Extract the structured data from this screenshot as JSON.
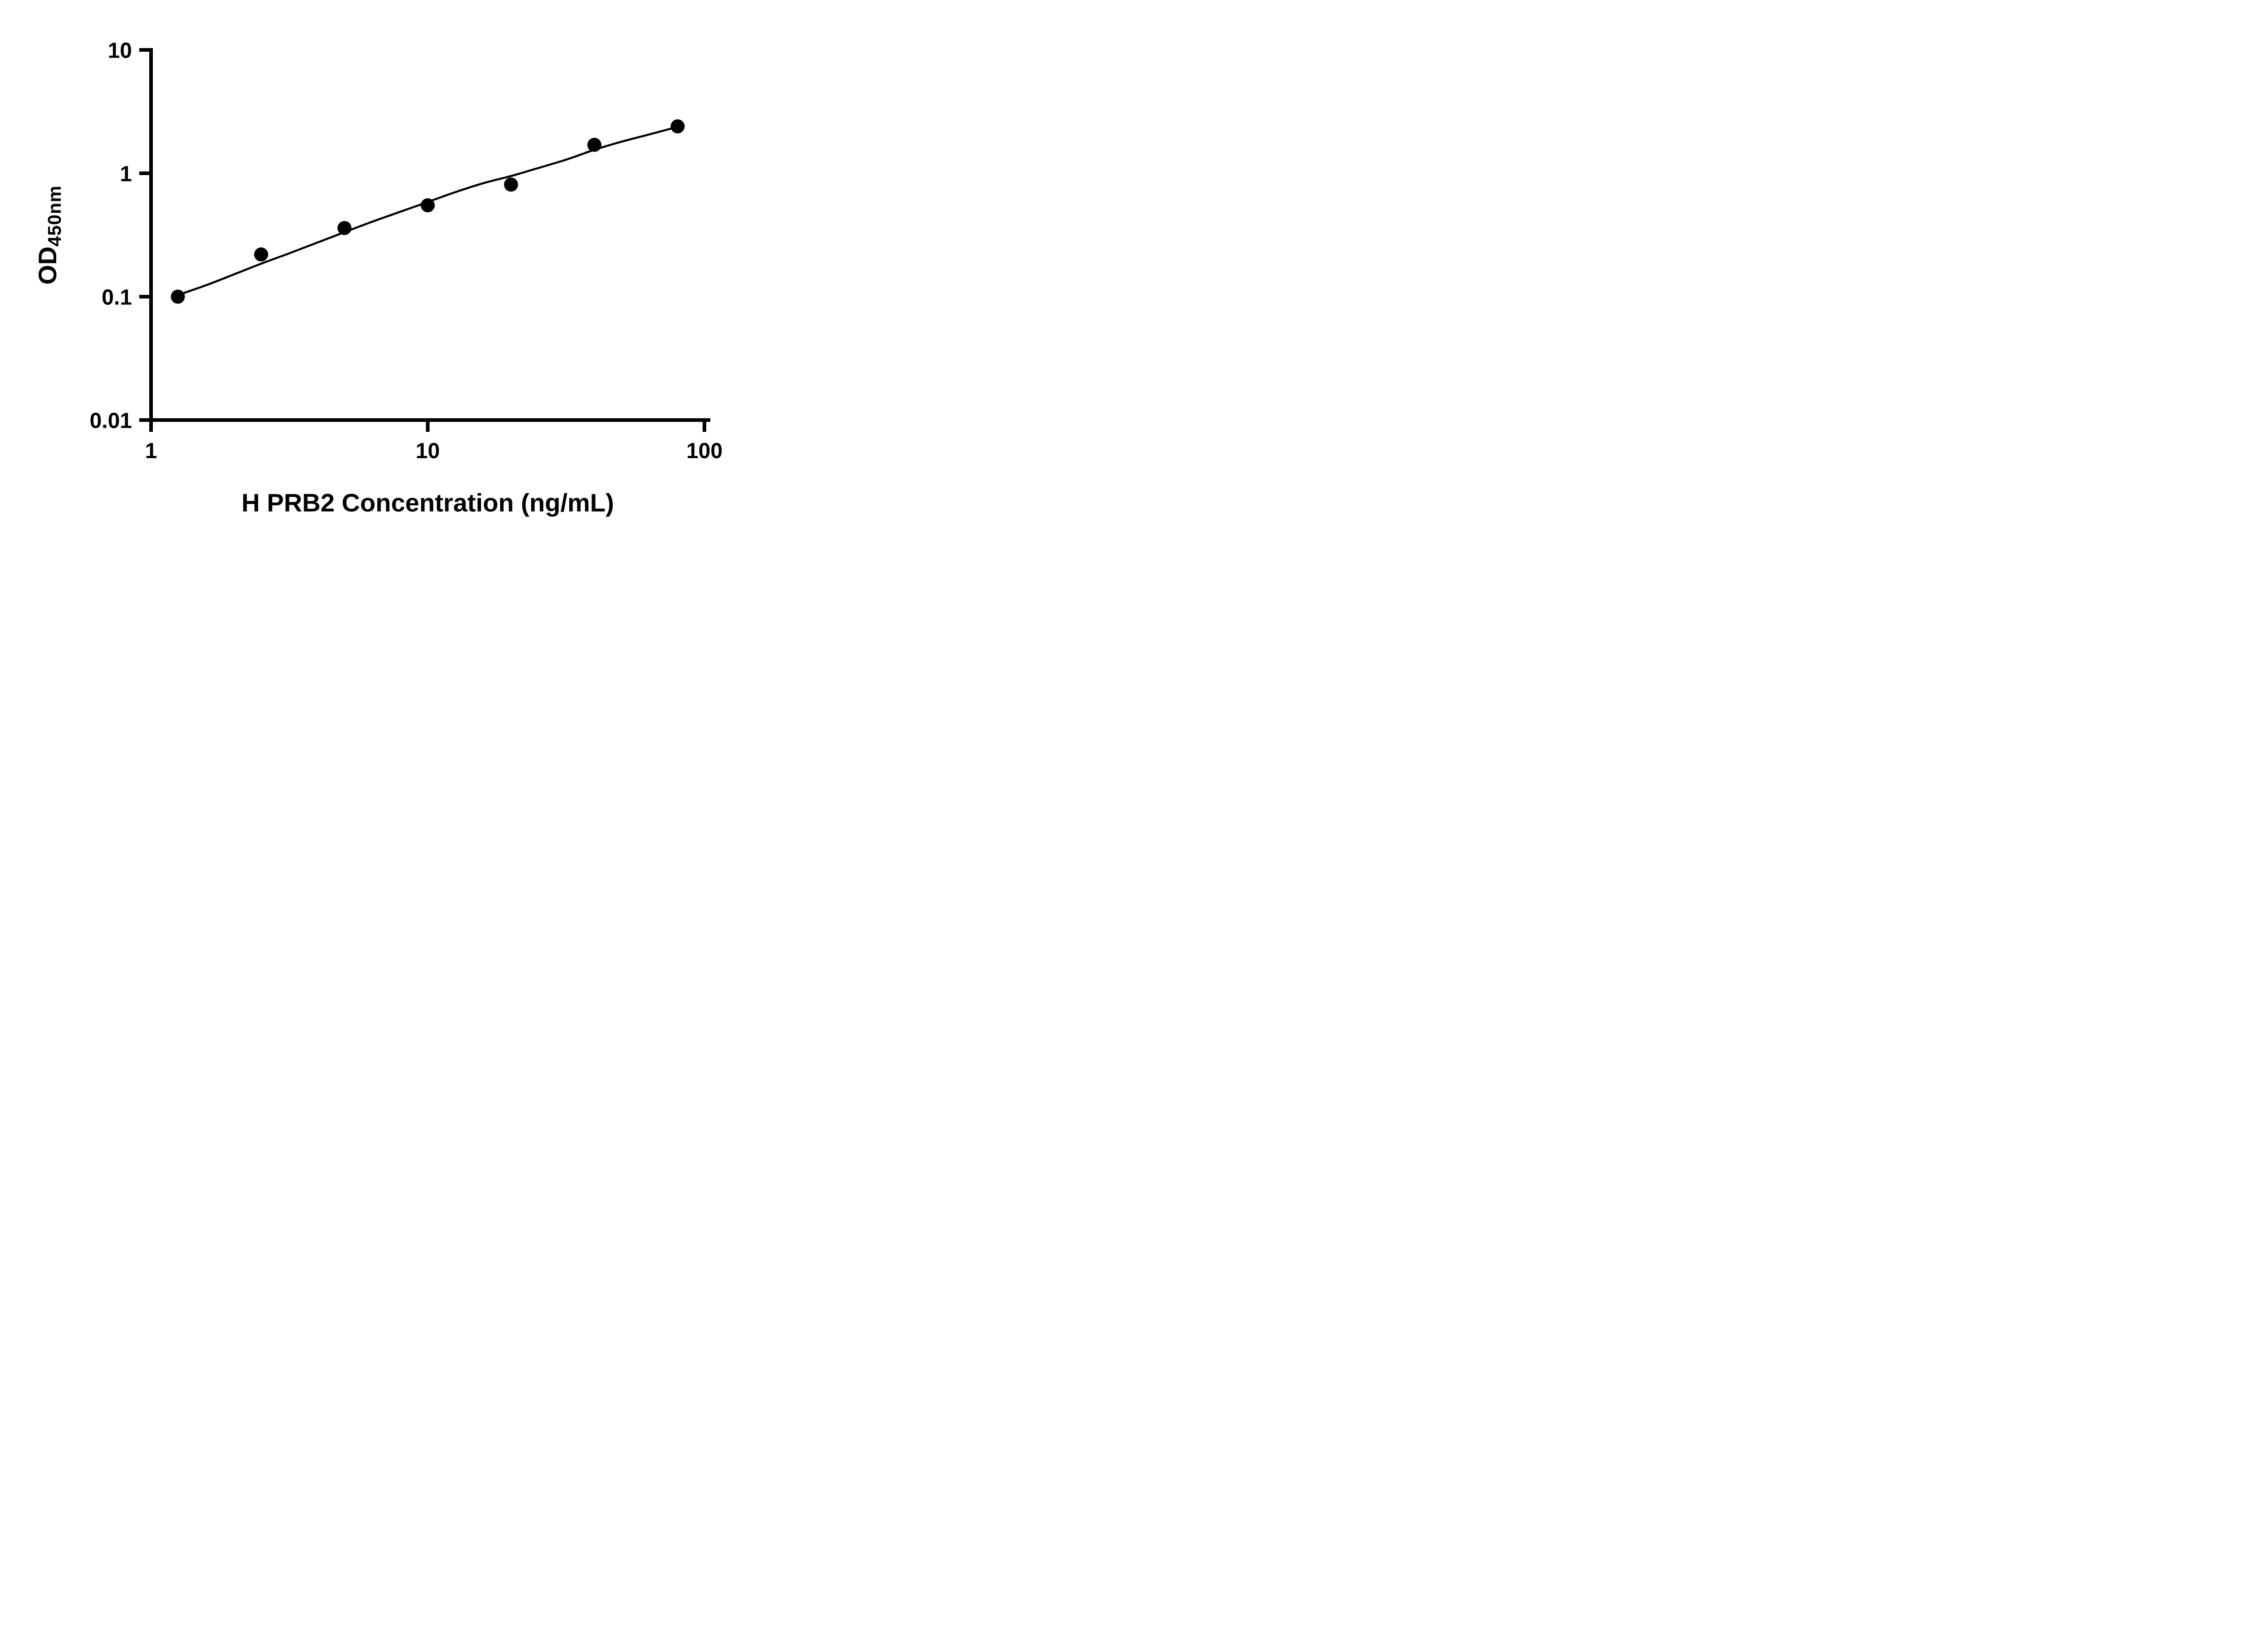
{
  "figure": {
    "background_color": "#ffffff"
  },
  "chart_data": {
    "type": "scatter",
    "title": "",
    "xlabel": "H PRB2 Concentration (ng/mL)",
    "ylabel": "OD",
    "ylabel_subscript": "450nm",
    "x_scale": "log10",
    "y_scale": "log10",
    "xlim": [
      1,
      100
    ],
    "ylim": [
      0.01,
      10
    ],
    "x_ticks": [
      1,
      10,
      100
    ],
    "x_tick_labels": [
      "1",
      "10",
      "100"
    ],
    "y_ticks": [
      0.01,
      0.1,
      1,
      10
    ],
    "y_tick_labels": [
      "0.01",
      "0.1",
      "1",
      "10"
    ],
    "grid": false,
    "legend": null,
    "marker_color": "#000000",
    "line_color": "#000000",
    "axis_color": "#000000",
    "points": {
      "x": [
        1.25,
        2.5,
        5,
        10,
        20,
        40,
        80
      ],
      "y": [
        0.1,
        0.22,
        0.36,
        0.55,
        0.81,
        1.7,
        2.4
      ]
    },
    "fit_curve": [
      [
        1.25,
        0.103
      ],
      [
        1.6,
        0.125
      ],
      [
        2.0,
        0.152
      ],
      [
        2.5,
        0.185
      ],
      [
        3.2,
        0.227
      ],
      [
        4.0,
        0.275
      ],
      [
        5.0,
        0.333
      ],
      [
        6.3,
        0.405
      ],
      [
        8.0,
        0.49
      ],
      [
        10,
        0.585
      ],
      [
        12.5,
        0.7
      ],
      [
        16,
        0.835
      ],
      [
        20,
        0.95
      ],
      [
        25,
        1.1
      ],
      [
        32,
        1.3
      ],
      [
        40,
        1.55
      ],
      [
        50,
        1.8
      ],
      [
        63,
        2.06
      ],
      [
        80,
        2.38
      ]
    ]
  }
}
